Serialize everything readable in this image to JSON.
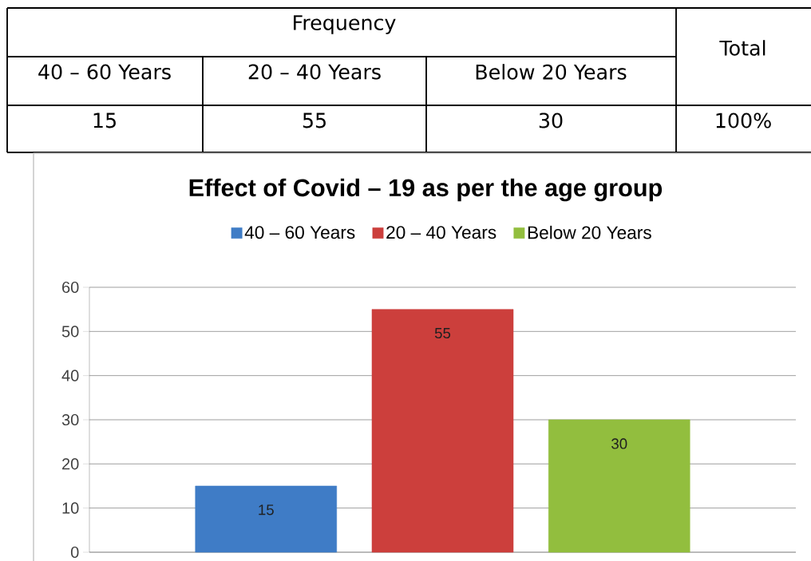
{
  "chart_data": {
    "type": "bar",
    "title": "Effect of Covid – 19 as per the age group",
    "categories": [
      null
    ],
    "series": [
      {
        "name": "40 – 60 Years",
        "color": "#3f7cc6",
        "values": [
          15
        ]
      },
      {
        "name": "20 – 40 Years",
        "color": "#cc3f3c",
        "values": [
          55
        ]
      },
      {
        "name": "Below 20 Years",
        "color": "#92be3e",
        "values": [
          30
        ]
      }
    ],
    "ylim": [
      0,
      60
    ],
    "yticks": [
      0,
      10,
      20,
      30,
      40,
      50,
      60
    ],
    "grid": "y",
    "legend": "top",
    "data_labels": true,
    "annotations": [
      "Frequency",
      "Total",
      "15",
      "55",
      "30",
      "100%"
    ]
  }
}
